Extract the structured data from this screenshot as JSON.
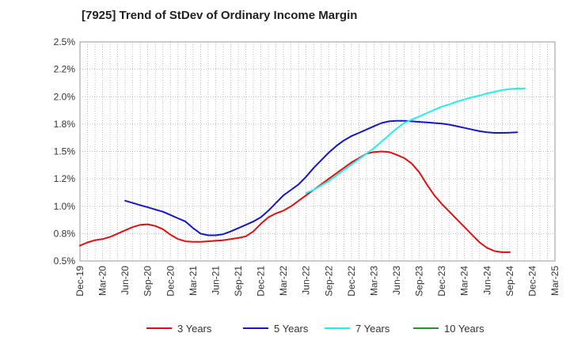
{
  "chart_data": {
    "type": "line",
    "title": "[7925]  Trend of StDev of Ordinary Income Margin",
    "xlabel": "",
    "ylabel": "",
    "ylim": [
      0.5,
      2.5
    ],
    "grid": true,
    "legend_position": "bottom",
    "y_ticks": [
      "2.5%",
      "2.2%",
      "2.0%",
      "1.8%",
      "1.5%",
      "1.2%",
      "1.0%",
      "0.8%",
      "0.5%"
    ],
    "y_tick_values": [
      2.5,
      2.25,
      2.0,
      1.75,
      1.5,
      1.25,
      1.0,
      0.75,
      0.5
    ],
    "x_ticks": [
      "Dec-19",
      "Mar-20",
      "Jun-20",
      "Sep-20",
      "Dec-20",
      "Mar-21",
      "Jun-21",
      "Sep-21",
      "Dec-21",
      "Mar-22",
      "Jun-22",
      "Sep-22",
      "Dec-22",
      "Mar-23",
      "Jun-23",
      "Sep-23",
      "Dec-23",
      "Mar-24",
      "Jun-24",
      "Sep-24",
      "Dec-24",
      "Mar-25"
    ],
    "series": [
      {
        "name": "3 Years",
        "color": "#dd1111",
        "start_index": 0,
        "values": [
          0.64,
          0.67,
          0.69,
          0.7,
          0.72,
          0.75,
          0.78,
          0.81,
          0.83,
          0.835,
          0.82,
          0.79,
          0.74,
          0.7,
          0.68,
          0.675,
          0.675,
          0.68,
          0.685,
          0.69,
          0.7,
          0.71,
          0.725,
          0.77,
          0.84,
          0.9,
          0.935,
          0.96,
          1.0,
          1.05,
          1.1,
          1.15,
          1.2,
          1.25,
          1.3,
          1.35,
          1.4,
          1.44,
          1.48,
          1.495,
          1.5,
          1.495,
          1.47,
          1.44,
          1.39,
          1.31,
          1.2,
          1.1,
          1.02,
          0.95,
          0.88,
          0.81,
          0.74,
          0.67,
          0.62,
          0.59,
          0.58,
          0.58
        ]
      },
      {
        "name": "5 Years",
        "color": "#1515cc",
        "start_index": 6,
        "values": [
          1.05,
          1.03,
          1.01,
          0.99,
          0.97,
          0.95,
          0.92,
          0.89,
          0.86,
          0.8,
          0.75,
          0.735,
          0.735,
          0.745,
          0.77,
          0.8,
          0.83,
          0.86,
          0.9,
          0.96,
          1.03,
          1.1,
          1.15,
          1.2,
          1.27,
          1.35,
          1.42,
          1.49,
          1.55,
          1.6,
          1.64,
          1.67,
          1.7,
          1.73,
          1.76,
          1.775,
          1.78,
          1.78,
          1.775,
          1.77,
          1.765,
          1.76,
          1.755,
          1.745,
          1.73,
          1.715,
          1.7,
          1.685,
          1.675,
          1.67,
          1.67,
          1.672,
          1.675
        ]
      },
      {
        "name": "7 Years",
        "color": "#22eeee",
        "start_index": 30,
        "values": [
          1.12,
          1.15,
          1.19,
          1.23,
          1.28,
          1.33,
          1.38,
          1.43,
          1.48,
          1.53,
          1.59,
          1.65,
          1.71,
          1.76,
          1.79,
          1.82,
          1.85,
          1.88,
          1.91,
          1.93,
          1.955,
          1.975,
          1.995,
          2.01,
          2.03,
          2.045,
          2.06,
          2.07,
          2.075,
          2.075
        ]
      },
      {
        "name": "10 Years",
        "color": "#229922",
        "start_index": 0,
        "values": []
      }
    ]
  }
}
